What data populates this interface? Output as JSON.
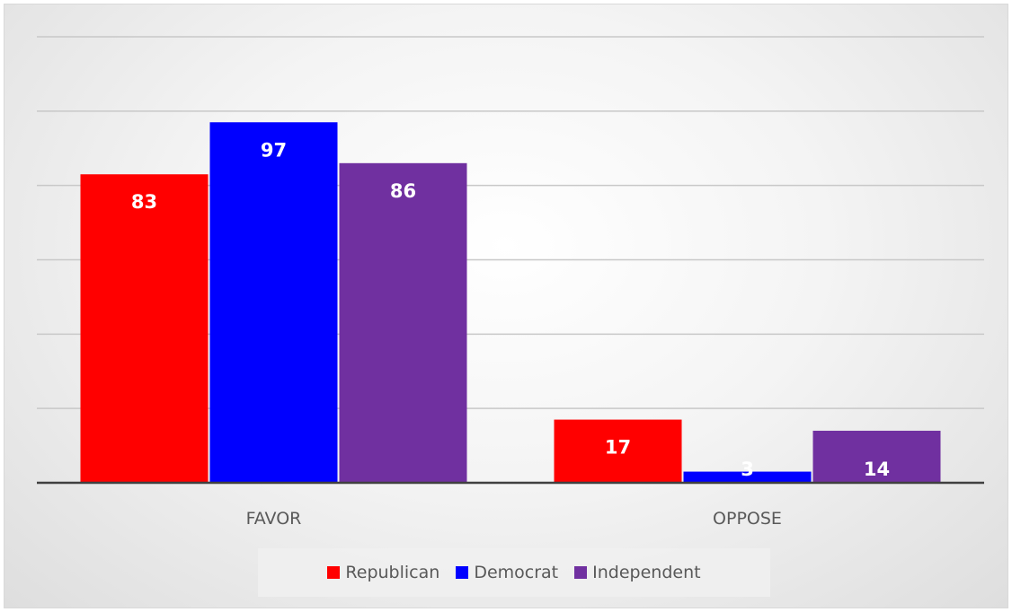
{
  "chart_data": {
    "type": "bar",
    "categories": [
      "FAVOR",
      "OPPOSE"
    ],
    "series": [
      {
        "name": "Republican",
        "values": [
          83,
          17
        ],
        "color": "#ff0000"
      },
      {
        "name": "Democrat",
        "values": [
          97,
          3
        ],
        "color": "#0000ff"
      },
      {
        "name": "Independent",
        "values": [
          86,
          14
        ],
        "color": "#7030a0"
      }
    ],
    "ylim": [
      0,
      120
    ],
    "grid": true,
    "legend": "bottom",
    "data_labels": true
  }
}
